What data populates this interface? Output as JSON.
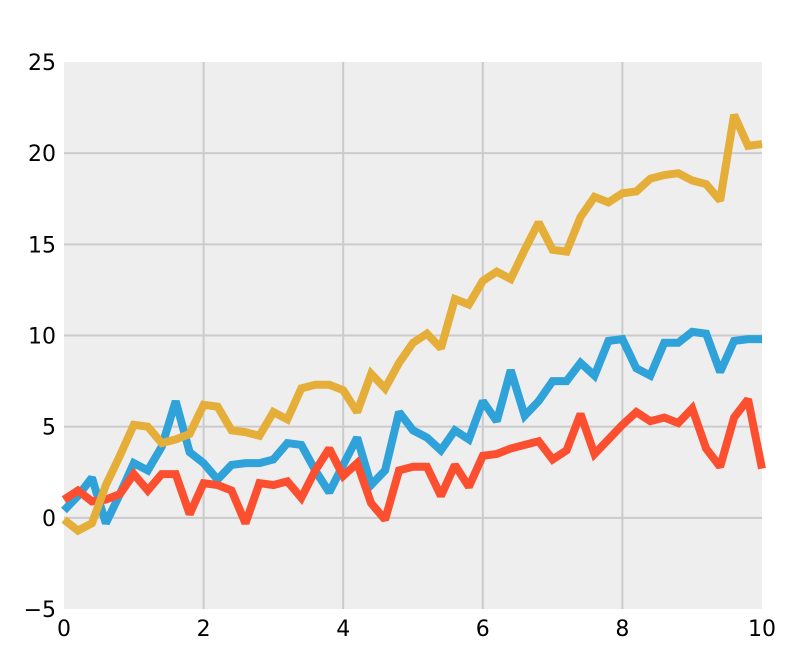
{
  "chart_data": {
    "type": "line",
    "title": "",
    "xlabel": "",
    "ylabel": "",
    "xlim": [
      0,
      10
    ],
    "ylim": [
      -5,
      25
    ],
    "xticks": [
      0,
      2,
      4,
      6,
      8,
      10
    ],
    "xtick_labels": [
      "0",
      "2",
      "4",
      "6",
      "8",
      "10"
    ],
    "yticks": [
      -5,
      0,
      5,
      10,
      15,
      20,
      25
    ],
    "ytick_labels": [
      "−5",
      "0",
      "5",
      "10",
      "15",
      "20",
      "25"
    ],
    "grid": true,
    "background_color": "#eeeeee",
    "grid_color": "#cbcbcb",
    "x": [
      0,
      0.2,
      0.4,
      0.6,
      0.8,
      1.0,
      1.2,
      1.4,
      1.6,
      1.8,
      2.0,
      2.2,
      2.4,
      2.6,
      2.8,
      3.0,
      3.2,
      3.4,
      3.6,
      3.8,
      4.0,
      4.2,
      4.4,
      4.6,
      4.8,
      5.0,
      5.2,
      5.4,
      5.6,
      5.8,
      6.0,
      6.2,
      6.4,
      6.6,
      6.8,
      7.0,
      7.2,
      7.4,
      7.6,
      7.8,
      8.0,
      8.2,
      8.4,
      8.6,
      8.8,
      9.0,
      9.2,
      9.4,
      9.6,
      9.8,
      10.0
    ],
    "series": [
      {
        "color": "#30a2da",
        "values": [
          0.4,
          1.2,
          2.2,
          -0.3,
          1.3,
          3.0,
          2.6,
          3.9,
          6.4,
          3.6,
          3.0,
          2.1,
          2.9,
          3.0,
          3.0,
          3.2,
          4.1,
          4.0,
          2.6,
          1.4,
          2.9,
          4.4,
          1.8,
          2.6,
          5.8,
          4.8,
          4.4,
          3.7,
          4.8,
          4.3,
          6.4,
          5.3,
          8.1,
          5.6,
          6.4,
          7.5,
          7.5,
          8.5,
          7.8,
          9.7,
          9.8,
          8.2,
          7.8,
          9.6,
          9.6,
          10.2,
          10.1,
          8.0,
          9.7,
          9.8,
          9.8
        ]
      },
      {
        "color": "#fc4f30",
        "values": [
          1.0,
          1.5,
          0.9,
          1.0,
          1.3,
          2.4,
          1.5,
          2.4,
          2.4,
          0.2,
          1.9,
          1.8,
          1.5,
          -0.3,
          1.9,
          1.8,
          2.0,
          1.1,
          2.6,
          3.8,
          2.3,
          3.0,
          0.8,
          -0.1,
          2.6,
          2.8,
          2.8,
          1.2,
          2.9,
          1.7,
          3.4,
          3.5,
          3.8,
          4.0,
          4.2,
          3.2,
          3.7,
          5.7,
          3.5,
          4.3,
          5.1,
          5.8,
          5.3,
          5.5,
          5.2,
          6.0,
          3.8,
          2.8,
          5.5,
          6.5,
          2.7
        ]
      },
      {
        "color": "#e5ae38",
        "values": [
          -0.1,
          -0.7,
          -0.3,
          1.8,
          3.4,
          5.1,
          5.0,
          4.1,
          4.3,
          4.6,
          6.2,
          6.1,
          4.8,
          4.7,
          4.5,
          5.8,
          5.4,
          7.1,
          7.3,
          7.3,
          7.0,
          5.8,
          7.9,
          7.1,
          8.5,
          9.6,
          10.1,
          9.3,
          12.0,
          11.7,
          13.0,
          13.5,
          13.1,
          14.7,
          16.2,
          14.7,
          14.6,
          16.5,
          17.6,
          17.3,
          17.8,
          17.9,
          18.6,
          18.8,
          18.9,
          18.5,
          18.3,
          17.4,
          22.1,
          20.4,
          20.5
        ]
      }
    ]
  }
}
